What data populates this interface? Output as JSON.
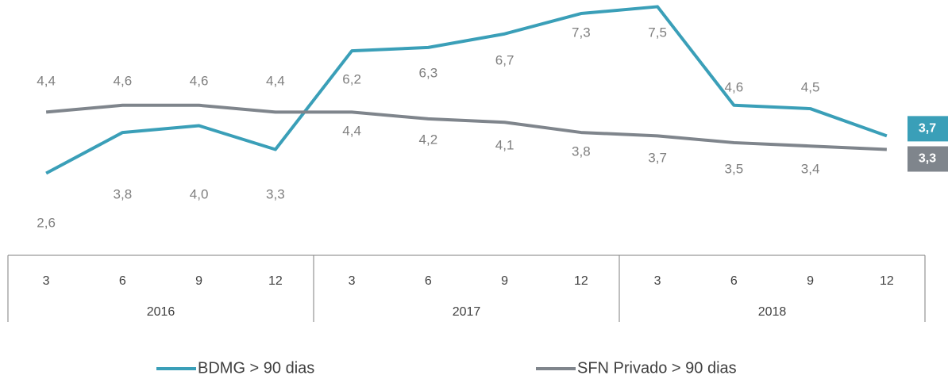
{
  "chart_data": {
    "type": "line",
    "categories": [
      "3",
      "6",
      "9",
      "12",
      "3",
      "6",
      "9",
      "12",
      "3",
      "6",
      "9",
      "12"
    ],
    "groups": [
      "2016",
      "2017",
      "2018"
    ],
    "series": [
      {
        "name": "BDMG > 90 dias",
        "color": "#3a9fb8",
        "values": [
          2.6,
          3.8,
          4.0,
          3.3,
          6.2,
          6.3,
          6.7,
          7.3,
          7.5,
          4.6,
          4.5,
          3.7
        ],
        "value_labels": [
          "2,6",
          "3,8",
          "4,0",
          "3,3",
          "6,2",
          "6,3",
          "6,7",
          "7,3",
          "7,5",
          "4,6",
          "4,5",
          "3,7"
        ]
      },
      {
        "name": "SFN Privado > 90 dias",
        "color": "#7f858c",
        "values": [
          4.4,
          4.6,
          4.6,
          4.4,
          4.4,
          4.2,
          4.1,
          3.8,
          3.7,
          3.5,
          3.4,
          3.3
        ],
        "value_labels": [
          "4,4",
          "4,6",
          "4,6",
          "4,4",
          "4,4",
          "4,2",
          "4,1",
          "3,8",
          "3,7",
          "3,5",
          "3,4",
          "3,3"
        ]
      }
    ],
    "ylim": [
      0,
      8
    ]
  }
}
